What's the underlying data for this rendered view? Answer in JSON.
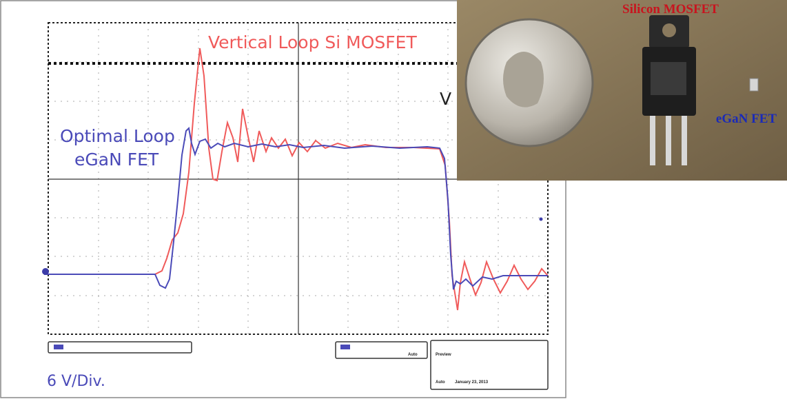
{
  "scope": {
    "trace_label_red": "Vertical Loop Si MOSFET",
    "trace_label_blue_line1": "Optimal Loop",
    "trace_label_blue_line2": "eGaN FET",
    "partial_label": "V",
    "scale": "6 V/Div.",
    "status": {
      "mode": "Preview",
      "trigger": "Auto",
      "date": "January 23, 2013"
    }
  },
  "photo": {
    "label_mosfet": "Silicon MOSFET",
    "label_egan": "eGaN FET"
  }
}
